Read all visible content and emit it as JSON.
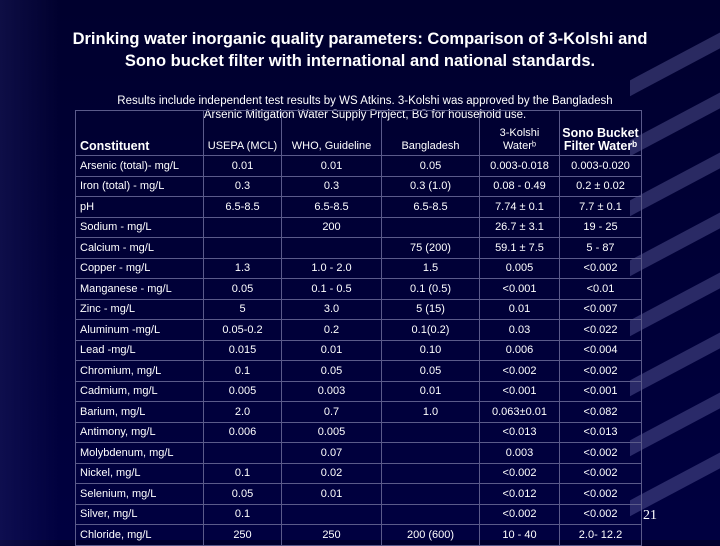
{
  "title": "Drinking water inorganic quality parameters: Comparison of 3-Kolshi and Sono bucket filter with international and national standards.",
  "subtitle": "Results include independent test results by WS Atkins. 3-Kolshi was approved by the Bangladesh Arsenic Mitigation Water Supply Project, BG for household use.",
  "headers": {
    "constituent": "Constituent",
    "usepa": "USEPA (MCL)",
    "who": "WHO, Guideline",
    "bangladesh": "Bangladesh",
    "kolshi": "3-Kolshi Waterᵇ",
    "sono": "Sono Bucket Filter Waterᵇ"
  },
  "rows": [
    [
      "Arsenic (total)- mg/L",
      "0.01",
      "0.01",
      "0.05",
      "0.003-0.018",
      "0.003-0.020"
    ],
    [
      "Iron (total) - mg/L",
      "0.3",
      "0.3",
      "0.3 (1.0)",
      "0.08 - 0.49",
      "0.2 ± 0.02"
    ],
    [
      "pH",
      "6.5-8.5",
      "6.5-8.5",
      "6.5-8.5",
      "7.74 ± 0.1",
      "7.7 ± 0.1"
    ],
    [
      "Sodium - mg/L",
      "",
      "200",
      "",
      "26.7 ± 3.1",
      "19 - 25"
    ],
    [
      "Calcium - mg/L",
      "",
      "",
      "75 (200)",
      "59.1 ± 7.5",
      "5 - 87"
    ],
    [
      "Copper - mg/L",
      "1.3",
      "1.0 - 2.0",
      "1.5",
      "0.005",
      "<0.002"
    ],
    [
      "Manganese - mg/L",
      "0.05",
      "0.1 - 0.5",
      "0.1 (0.5)",
      "<0.001",
      "<0.01"
    ],
    [
      "Zinc - mg/L",
      "5",
      "3.0",
      "5 (15)",
      "0.01",
      "<0.007"
    ],
    [
      "Aluminum -mg/L",
      "0.05-0.2",
      "0.2",
      "0.1(0.2)",
      "0.03",
      "<0.022"
    ],
    [
      "Lead -mg/L",
      "0.015",
      "0.01",
      "0.10",
      "0.006",
      "<0.004"
    ],
    [
      "Chromium, mg/L",
      "0.1",
      "0.05",
      "0.05",
      "<0.002",
      "<0.002"
    ],
    [
      "Cadmium, mg/L",
      "0.005",
      "0.003",
      "0.01",
      "<0.001",
      "<0.001"
    ],
    [
      "Barium, mg/L",
      "2.0",
      "0.7",
      "1.0",
      "0.063±0.01",
      "<0.082"
    ],
    [
      "Antimony, mg/L",
      "0.006",
      "0.005",
      "",
      "<0.013",
      "<0.013"
    ],
    [
      "Molybdenum, mg/L",
      "",
      "0.07",
      "",
      "0.003",
      "<0.002"
    ],
    [
      "Nickel, mg/L",
      "0.1",
      "0.02",
      "",
      "<0.002",
      "<0.002"
    ],
    [
      "Selenium, mg/L",
      "0.05",
      "0.01",
      "",
      "<0.012",
      "<0.002"
    ],
    [
      "Silver, mg/L",
      "0.1",
      "",
      "",
      "<0.002",
      "<0.002"
    ],
    [
      "Chloride, mg/L",
      "250",
      "250",
      "200 (600)",
      "10 - 40",
      "2.0- 12.2"
    ]
  ],
  "page_number": "21"
}
